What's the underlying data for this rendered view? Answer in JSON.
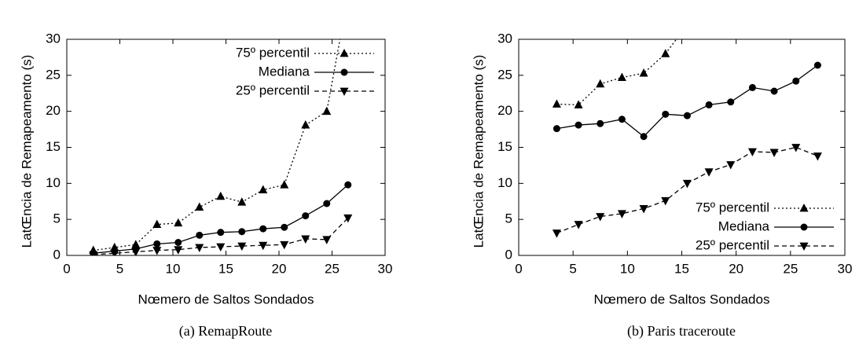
{
  "chart_data": [
    {
      "type": "line",
      "caption": "(a) RemapRoute",
      "x_label": "Nœmero de Saltos Sondados",
      "y_label": "LatŒncia de Remapeamento (s)",
      "x": [
        2.5,
        4.5,
        6.5,
        8.5,
        10.5,
        12.5,
        14.5,
        16.5,
        18.5,
        20.5,
        22.5,
        24.5,
        26.5
      ],
      "series": [
        {
          "name": "75º percentil",
          "color": "#000000",
          "line_style": "dotted",
          "marker": "triangle-up",
          "values": [
            0.7,
            1.1,
            1.5,
            4.3,
            4.5,
            6.7,
            8.2,
            7.4,
            9.1,
            9.8,
            18.1,
            20,
            36
          ]
        },
        {
          "name": "Mediana",
          "color": "#000000",
          "line_style": "solid",
          "marker": "circle",
          "values": [
            0.3,
            0.6,
            0.9,
            1.6,
            1.8,
            2.8,
            3.2,
            3.3,
            3.7,
            3.9,
            5.5,
            7.2,
            9.8
          ]
        },
        {
          "name": "25º percentil",
          "color": "#000000",
          "line_style": "dashed",
          "marker": "triangle-down",
          "values": [
            0.1,
            0.3,
            0.5,
            0.7,
            0.8,
            1.1,
            1.2,
            1.3,
            1.4,
            1.5,
            2.3,
            2.2,
            5.2
          ]
        }
      ],
      "xlim": [
        0,
        30
      ],
      "xticks": [
        0,
        5,
        10,
        15,
        20,
        25,
        30
      ],
      "ylim": [
        0,
        30
      ],
      "yticks": [
        0,
        5,
        10,
        15,
        20,
        25,
        30
      ],
      "legend": "top-right"
    },
    {
      "type": "line",
      "caption": "(b) Paris traceroute",
      "x_label": "Nœmero de Saltos Sondados",
      "y_label": "LatŒncia de Remapeamento (s)",
      "x": [
        3.5,
        5.5,
        7.5,
        9.5,
        11.5,
        13.5,
        15.5,
        17.5,
        19.5,
        21.5,
        23.5,
        25.5,
        27.5
      ],
      "series": [
        {
          "name": "75º percentil",
          "color": "#000000",
          "line_style": "dotted",
          "marker": "triangle-up",
          "values": [
            21,
            20.9,
            23.8,
            24.7,
            25.3,
            28,
            32,
            null,
            null,
            null,
            null,
            null,
            null
          ]
        },
        {
          "name": "Mediana",
          "color": "#000000",
          "line_style": "solid",
          "marker": "circle",
          "values": [
            17.6,
            18.1,
            18.3,
            18.9,
            16.5,
            19.6,
            19.4,
            20.9,
            21.3,
            23.3,
            22.8,
            24.2,
            26.4
          ]
        },
        {
          "name": "25º percentil",
          "color": "#000000",
          "line_style": "dashed",
          "marker": "triangle-down",
          "values": [
            3.1,
            4.3,
            5.4,
            5.8,
            6.5,
            7.6,
            10,
            11.6,
            12.6,
            14.4,
            14.3,
            15,
            13.8
          ]
        }
      ],
      "xlim": [
        0,
        30
      ],
      "xticks": [
        0,
        5,
        10,
        15,
        20,
        25,
        30
      ],
      "ylim": [
        0,
        30
      ],
      "yticks": [
        0,
        5,
        10,
        15,
        20,
        25,
        30
      ],
      "legend": "bottom-right"
    }
  ]
}
